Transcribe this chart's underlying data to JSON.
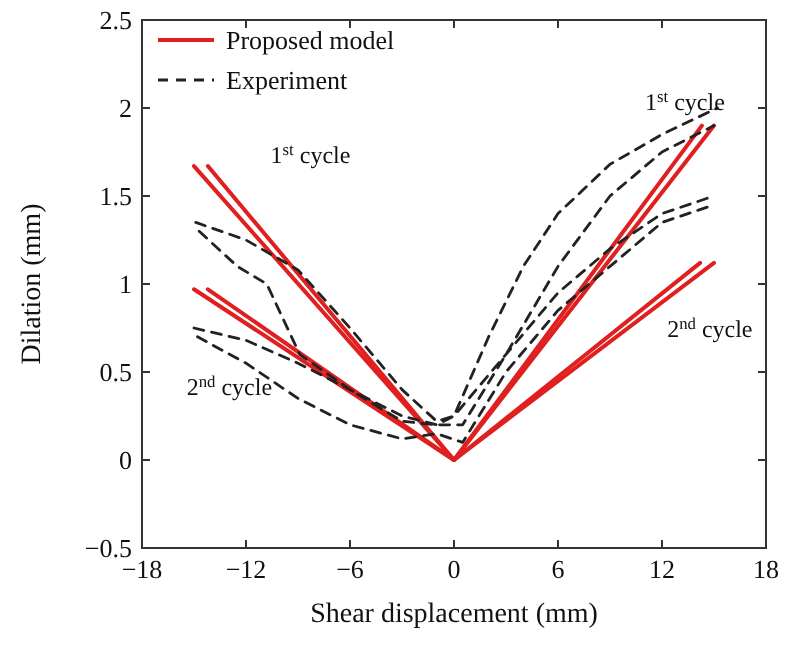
{
  "chart_data": {
    "type": "line",
    "xlabel": "Shear displacement (mm)",
    "ylabel": "Dilation (mm)",
    "xlim": [
      -18,
      18
    ],
    "xticks": [
      -18,
      -12,
      -6,
      0,
      6,
      12,
      18
    ],
    "ylim": [
      -0.5,
      2.5
    ],
    "yticks": [
      -0.5,
      0,
      0.5,
      1,
      1.5,
      2,
      2.5
    ],
    "grid": false,
    "legend": "top left",
    "marker": "none",
    "series": [
      {
        "name": "Proposed model",
        "color": "#e02020",
        "line_style": "solid",
        "x": [
          -15,
          0,
          15
        ],
        "values": [
          1.67,
          0,
          1.9
        ]
      },
      {
        "color": "#e02020",
        "line_style": "solid",
        "x": [
          -14.2,
          0,
          14.3
        ],
        "values": [
          1.67,
          0,
          1.9
        ]
      },
      {
        "color": "#e02020",
        "line_style": "solid",
        "x": [
          -15,
          0,
          15
        ],
        "values": [
          0.97,
          0,
          1.12
        ]
      },
      {
        "color": "#e02020",
        "line_style": "solid",
        "x": [
          -14.2,
          0,
          14.2
        ],
        "values": [
          0.97,
          0,
          1.12
        ]
      },
      {
        "name": "Experiment",
        "color": "#222222",
        "line_style": "dashed",
        "x": [
          -14.9,
          -12,
          -9,
          -6,
          -3,
          -1,
          0,
          2,
          4,
          6,
          9,
          12,
          15.2
        ],
        "values": [
          1.35,
          1.25,
          1.08,
          0.75,
          0.4,
          0.22,
          0.25,
          0.7,
          1.1,
          1.4,
          1.68,
          1.85,
          2.0
        ]
      },
      {
        "color": "#222222",
        "line_style": "dashed",
        "x": [
          -14.7,
          -12.5,
          -10.8,
          -8.9,
          -6,
          -3,
          -1,
          0.5,
          3,
          6,
          9,
          12,
          15
        ],
        "values": [
          1.3,
          1.1,
          1.0,
          0.6,
          0.4,
          0.22,
          0.2,
          0.2,
          0.6,
          1.1,
          1.5,
          1.75,
          1.9
        ]
      },
      {
        "color": "#222222",
        "line_style": "dashed",
        "x": [
          -15,
          -12,
          -9,
          -6,
          -3,
          -1,
          0,
          3,
          6,
          9,
          12,
          15
        ],
        "values": [
          0.75,
          0.68,
          0.55,
          0.4,
          0.25,
          0.2,
          0.25,
          0.6,
          0.95,
          1.2,
          1.4,
          1.5
        ]
      },
      {
        "color": "#222222",
        "line_style": "dashed",
        "x": [
          -14.8,
          -12,
          -9,
          -6,
          -3,
          -1,
          0.5,
          3,
          6,
          9,
          12,
          15
        ],
        "values": [
          0.7,
          0.55,
          0.35,
          0.2,
          0.12,
          0.15,
          0.1,
          0.5,
          0.85,
          1.1,
          1.35,
          1.45
        ]
      }
    ],
    "annotations": [
      "1$^{st}$ cycle",
      "1$^{st}$ cycle",
      "2$^{nd}$ cycle",
      "2$^{nd}$ cycle"
    ]
  }
}
